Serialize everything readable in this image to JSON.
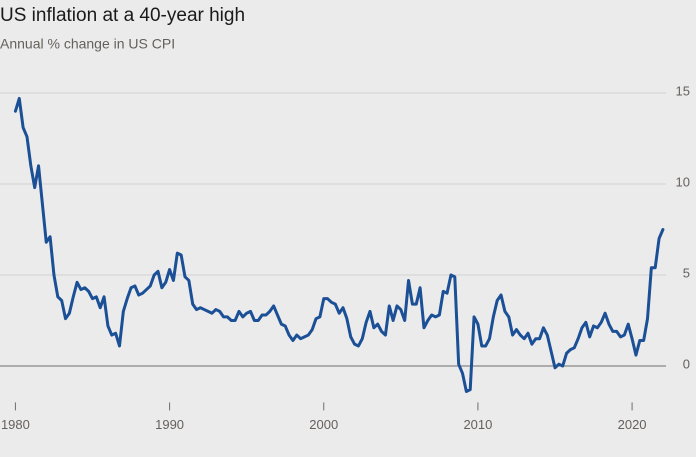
{
  "chart_data": {
    "type": "line",
    "title": "US inflation at a 40-year high",
    "subtitle": "Annual % change in US CPI",
    "x": [
      1980,
      1980.25,
      1980.5,
      1980.75,
      1981,
      1981.25,
      1981.5,
      1981.75,
      1982,
      1982.25,
      1982.5,
      1982.75,
      1983,
      1983.25,
      1983.5,
      1983.75,
      1984,
      1984.25,
      1984.5,
      1984.75,
      1985,
      1985.25,
      1985.5,
      1985.75,
      1986,
      1986.25,
      1986.5,
      1986.75,
      1987,
      1987.25,
      1987.5,
      1987.75,
      1988,
      1988.25,
      1988.5,
      1988.75,
      1989,
      1989.25,
      1989.5,
      1989.75,
      1990,
      1990.25,
      1990.5,
      1990.75,
      1991,
      1991.25,
      1991.5,
      1991.75,
      1992,
      1992.25,
      1992.5,
      1992.75,
      1993,
      1993.25,
      1993.5,
      1993.75,
      1994,
      1994.25,
      1994.5,
      1994.75,
      1995,
      1995.25,
      1995.5,
      1995.75,
      1996,
      1996.25,
      1996.5,
      1996.75,
      1997,
      1997.25,
      1997.5,
      1997.75,
      1998,
      1998.25,
      1998.5,
      1998.75,
      1999,
      1999.25,
      1999.5,
      1999.75,
      2000,
      2000.25,
      2000.5,
      2000.75,
      2001,
      2001.25,
      2001.5,
      2001.75,
      2002,
      2002.25,
      2002.5,
      2002.75,
      2003,
      2003.25,
      2003.5,
      2003.75,
      2004,
      2004.25,
      2004.5,
      2004.75,
      2005,
      2005.25,
      2005.5,
      2005.75,
      2006,
      2006.25,
      2006.5,
      2006.75,
      2007,
      2007.25,
      2007.5,
      2007.75,
      2008,
      2008.25,
      2008.5,
      2008.75,
      2009,
      2009.25,
      2009.5,
      2009.75,
      2010,
      2010.25,
      2010.5,
      2010.75,
      2011,
      2011.25,
      2011.5,
      2011.75,
      2012,
      2012.25,
      2012.5,
      2012.75,
      2013,
      2013.25,
      2013.5,
      2013.75,
      2014,
      2014.25,
      2014.5,
      2014.75,
      2015,
      2015.25,
      2015.5,
      2015.75,
      2016,
      2016.25,
      2016.5,
      2016.75,
      2017,
      2017.25,
      2017.5,
      2017.75,
      2018,
      2018.25,
      2018.5,
      2018.75,
      2019,
      2019.25,
      2019.5,
      2019.75,
      2020,
      2020.25,
      2020.5,
      2020.75,
      2021,
      2021.25,
      2021.5,
      2021.75,
      2022
    ],
    "series": [
      {
        "name": "US CPI",
        "color": "#1b4f96",
        "values": [
          14.0,
          14.7,
          13.1,
          12.6,
          11.0,
          9.8,
          11.0,
          8.9,
          6.8,
          7.1,
          5.0,
          3.8,
          3.6,
          2.6,
          2.9,
          3.8,
          4.6,
          4.2,
          4.3,
          4.1,
          3.7,
          3.8,
          3.2,
          3.8,
          2.2,
          1.7,
          1.8,
          1.1,
          3.0,
          3.7,
          4.3,
          4.4,
          3.9,
          4.0,
          4.2,
          4.4,
          5.0,
          5.2,
          4.3,
          4.6,
          5.3,
          4.7,
          6.2,
          6.1,
          4.9,
          4.7,
          3.4,
          3.1,
          3.2,
          3.1,
          3.0,
          2.9,
          3.1,
          3.0,
          2.7,
          2.7,
          2.5,
          2.5,
          3.0,
          2.7,
          2.9,
          3.0,
          2.5,
          2.5,
          2.8,
          2.8,
          3.0,
          3.3,
          2.8,
          2.3,
          2.2,
          1.7,
          1.4,
          1.7,
          1.5,
          1.6,
          1.7,
          2.0,
          2.6,
          2.7,
          3.7,
          3.7,
          3.5,
          3.4,
          2.9,
          3.2,
          2.6,
          1.6,
          1.2,
          1.1,
          1.5,
          2.4,
          3.0,
          2.1,
          2.3,
          1.9,
          1.7,
          3.3,
          2.5,
          3.3,
          3.1,
          2.5,
          4.7,
          3.4,
          3.4,
          4.3,
          2.1,
          2.5,
          2.8,
          2.7,
          2.8,
          4.1,
          4.0,
          5.0,
          4.9,
          0.1,
          -0.4,
          -1.4,
          -1.3,
          2.7,
          2.3,
          1.1,
          1.1,
          1.5,
          2.7,
          3.6,
          3.9,
          3.0,
          2.7,
          1.7,
          2.0,
          1.7,
          1.5,
          1.8,
          1.2,
          1.5,
          1.5,
          2.1,
          1.7,
          0.8,
          -0.1,
          0.1,
          0.0,
          0.7,
          0.9,
          1.0,
          1.5,
          2.1,
          2.4,
          1.6,
          2.2,
          2.1,
          2.4,
          2.9,
          2.3,
          1.9,
          1.9,
          1.6,
          1.7,
          2.3,
          1.5,
          0.6,
          1.4,
          1.4,
          2.6,
          5.4,
          5.4,
          7.0,
          7.5
        ]
      }
    ],
    "xlim": [
      1979,
      2022.2
    ],
    "xticks": [
      1980,
      1990,
      2000,
      2010,
      2020
    ],
    "ylim": [
      -2,
      15
    ],
    "yticks": [
      0,
      5,
      10,
      15
    ],
    "grid": true
  }
}
